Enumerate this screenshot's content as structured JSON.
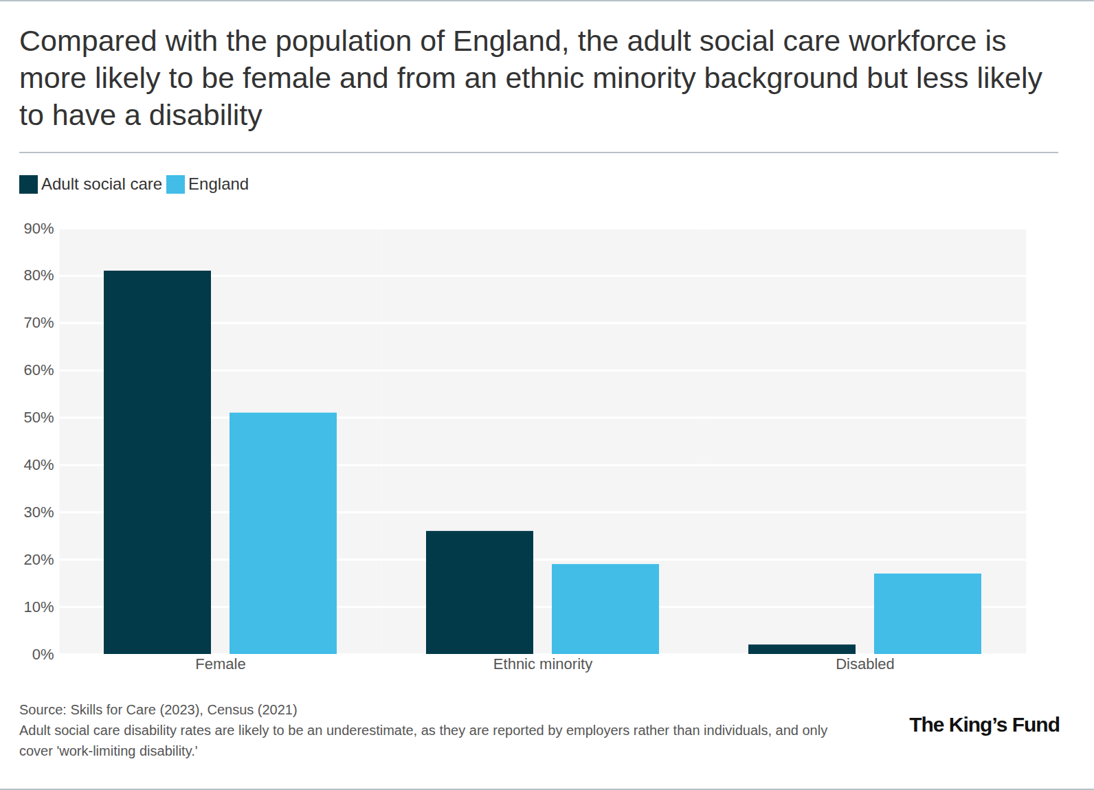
{
  "chart_data": {
    "type": "bar",
    "title": "Compared with the population of England, the adult social care workforce is more likely to be female and from an ethnic minority background but less likely to have a disability",
    "categories": [
      "Female",
      "Ethnic minority",
      "Disabled"
    ],
    "series": [
      {
        "name": "Adult social care",
        "color": "#023a4a",
        "values": [
          81,
          26,
          2
        ]
      },
      {
        "name": "England",
        "color": "#41bde8",
        "values": [
          51,
          19,
          17
        ]
      }
    ],
    "ylim": [
      0,
      90
    ],
    "yticks": [
      {
        "value": 0,
        "label": "0%"
      },
      {
        "value": 10,
        "label": "10%"
      },
      {
        "value": 20,
        "label": "20%"
      },
      {
        "value": 30,
        "label": "30%"
      },
      {
        "value": 40,
        "label": "40%"
      },
      {
        "value": 50,
        "label": "50%"
      },
      {
        "value": 60,
        "label": "60%"
      },
      {
        "value": 70,
        "label": "70%"
      },
      {
        "value": 80,
        "label": "80%"
      },
      {
        "value": 90,
        "label": "90%"
      }
    ],
    "grid": true,
    "legend": "top-left",
    "source": "Source: Skills for Care (2023), Census (2021)",
    "note": "Adult social care disability rates are likely to be an underestimate, as they are reported by employers rather than individuals, and only cover 'work-limiting disability.'",
    "logo": "The King’s Fund"
  }
}
